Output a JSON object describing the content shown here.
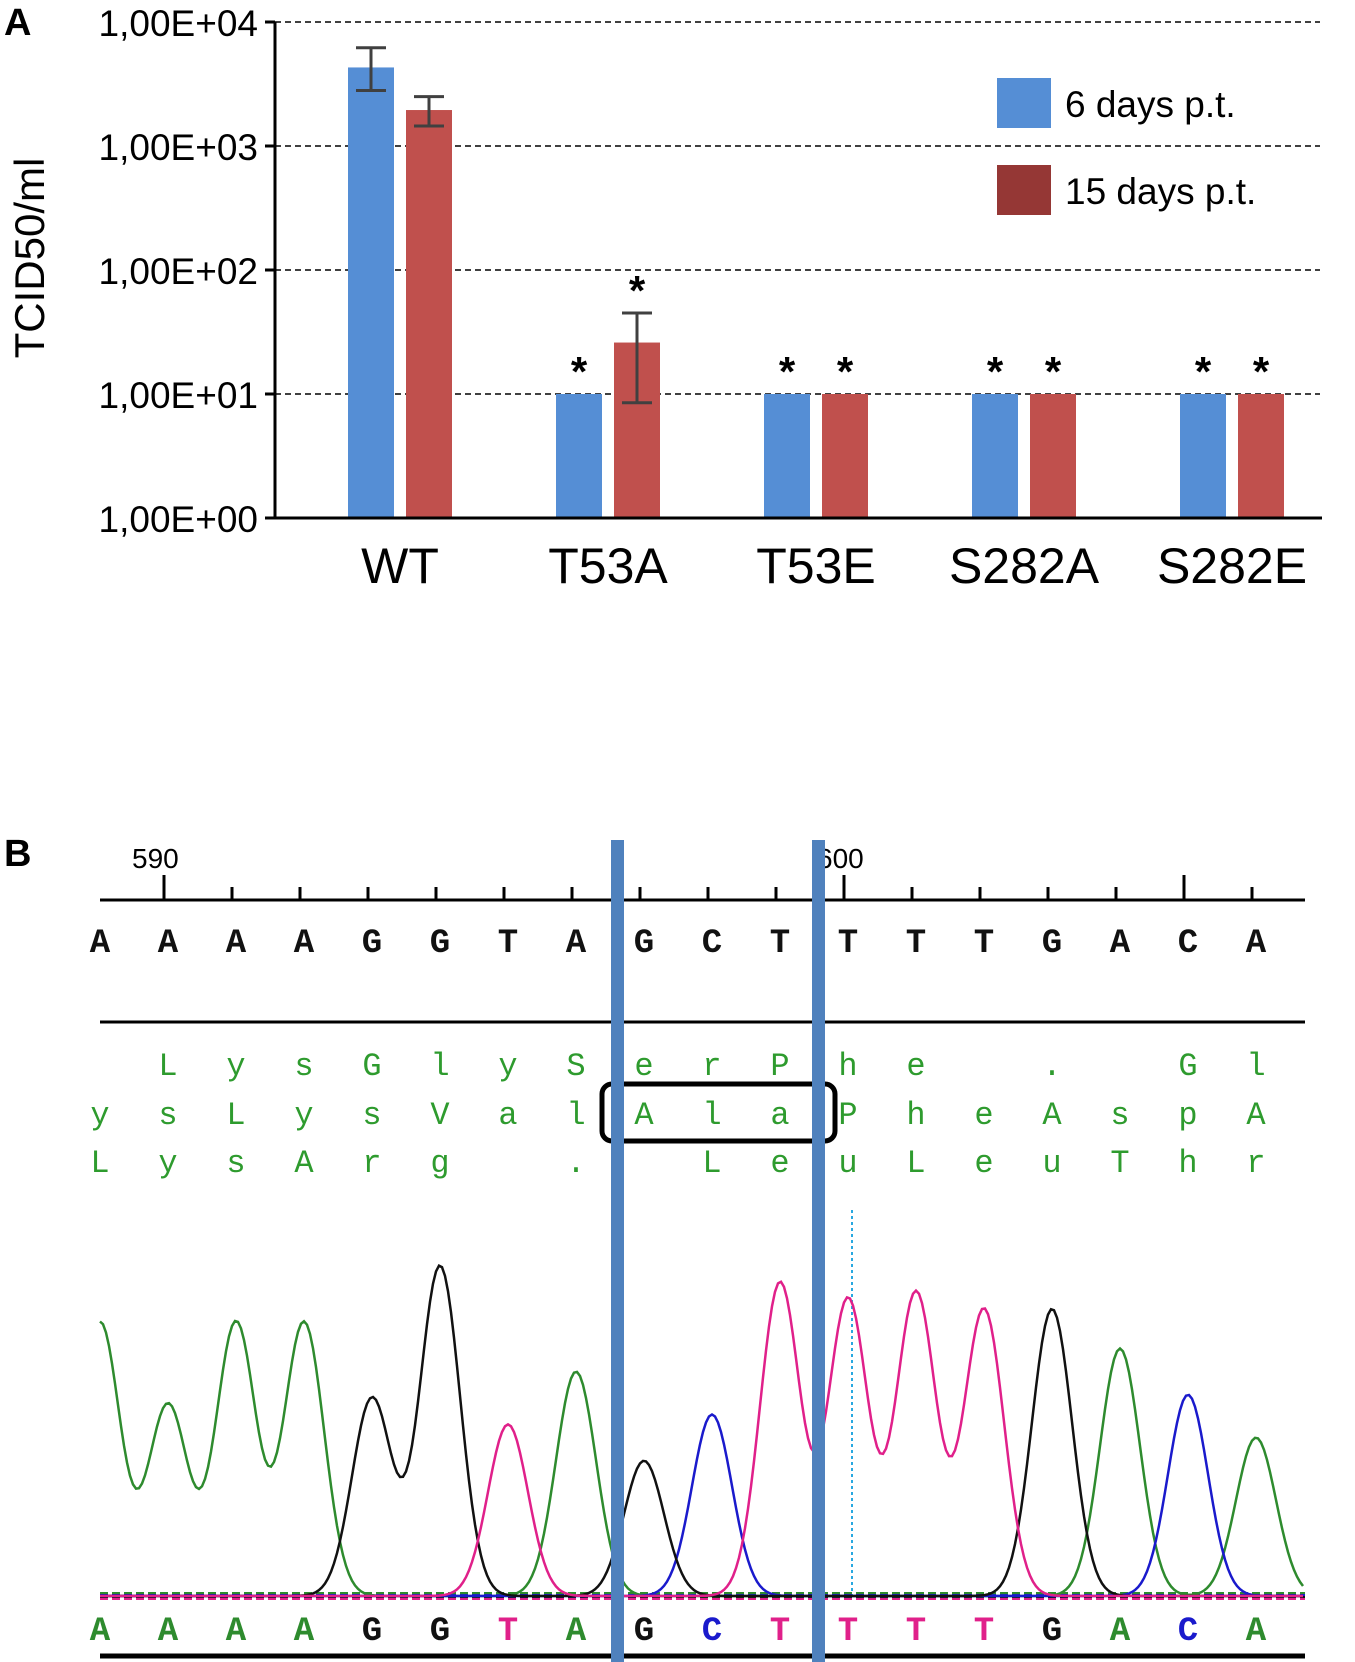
{
  "chart_data": {
    "type": "bar",
    "panel_label": "A",
    "ylabel": "TCID50/ml",
    "yscale": "log",
    "ylim": [
      1,
      10000
    ],
    "yticks": [
      {
        "value": 1,
        "label": "1,00E+00"
      },
      {
        "value": 10,
        "label": "1,00E+01"
      },
      {
        "value": 100,
        "label": "1,00E+02"
      },
      {
        "value": 1000,
        "label": "1,00E+03"
      },
      {
        "value": 10000,
        "label": "1,00E+04"
      }
    ],
    "grid": true,
    "categories": [
      "WT",
      "T53A",
      "T53E",
      "S282A",
      "S282E"
    ],
    "series": [
      {
        "name": "6 days p.t.",
        "color": "#558ED5",
        "values": [
          4300,
          10,
          10,
          10,
          10
        ],
        "err_low": [
          2800,
          null,
          null,
          null,
          null
        ],
        "err_high": [
          6200,
          null,
          null,
          null,
          null
        ],
        "significant": [
          false,
          true,
          true,
          true,
          true
        ]
      },
      {
        "name": "15 days p.t.",
        "color": "#C0504D",
        "legend_color": "#953735",
        "values": [
          1950,
          26,
          10,
          10,
          10
        ],
        "err_low": [
          1450,
          8.5,
          null,
          null,
          null
        ],
        "err_high": [
          2500,
          45,
          null,
          null,
          null
        ],
        "significant": [
          false,
          true,
          true,
          true,
          true
        ]
      }
    ],
    "significance_marker": "*",
    "legend_position": "top-right"
  },
  "panel_b": {
    "panel_label": "B",
    "position_labels": [
      "590",
      "600"
    ],
    "ruler_tick_count": 17,
    "sequence_top": [
      "A",
      "A",
      "A",
      "A",
      "G",
      "G",
      "T",
      "A",
      "G",
      "C",
      "T",
      "T",
      "T",
      "T",
      "G",
      "A",
      "C",
      "A"
    ],
    "translation_rows": [
      [
        "",
        "L",
        "y",
        "s",
        "G",
        "l",
        "y",
        "S",
        "e",
        "r",
        "P",
        "h",
        "e",
        "",
        ".",
        "",
        "G",
        "l"
      ],
      [
        "y",
        "s",
        "L",
        "y",
        "s",
        "V",
        "a",
        "l",
        "A",
        "l",
        "a",
        "P",
        "h",
        "e",
        "A",
        "s",
        "p",
        "A"
      ],
      [
        "L",
        "y",
        "s",
        "A",
        "r",
        "g",
        "",
        ".",
        "",
        "L",
        "e",
        "u",
        "L",
        "e",
        "u",
        "T",
        "h",
        "r"
      ]
    ],
    "highlighted_codon": "Ala",
    "sequence_bottom": [
      "A",
      "A",
      "A",
      "A",
      "G",
      "G",
      "T",
      "A",
      "G",
      "C",
      "T",
      "T",
      "T",
      "T",
      "G",
      "A",
      "C",
      "A"
    ],
    "base_colors": {
      "A": "#2E8B2E",
      "C": "#1A1ACC",
      "G": "#111111",
      "T": "#E0208A"
    },
    "marker_color": "#4F81BD",
    "peaks": [
      {
        "base": "A",
        "pos": 0,
        "height": 0.83
      },
      {
        "base": "A",
        "pos": 1,
        "height": 0.58
      },
      {
        "base": "A",
        "pos": 2,
        "height": 0.83
      },
      {
        "base": "A",
        "pos": 3,
        "height": 0.83
      },
      {
        "base": "G",
        "pos": 4,
        "height": 0.6
      },
      {
        "base": "G",
        "pos": 5,
        "height": 1.0
      },
      {
        "base": "T",
        "pos": 6,
        "height": 0.52
      },
      {
        "base": "A",
        "pos": 7,
        "height": 0.68
      },
      {
        "base": "G",
        "pos": 8,
        "height": 0.41
      },
      {
        "base": "C",
        "pos": 9,
        "height": 0.55
      },
      {
        "base": "T",
        "pos": 10,
        "height": 0.95
      },
      {
        "base": "T",
        "pos": 11,
        "height": 0.9
      },
      {
        "base": "T",
        "pos": 12,
        "height": 0.92
      },
      {
        "base": "T",
        "pos": 13,
        "height": 0.87
      },
      {
        "base": "G",
        "pos": 14,
        "height": 0.87
      },
      {
        "base": "A",
        "pos": 15,
        "height": 0.75
      },
      {
        "base": "C",
        "pos": 16,
        "height": 0.61
      },
      {
        "base": "A",
        "pos": 17,
        "height": 0.48
      }
    ]
  }
}
